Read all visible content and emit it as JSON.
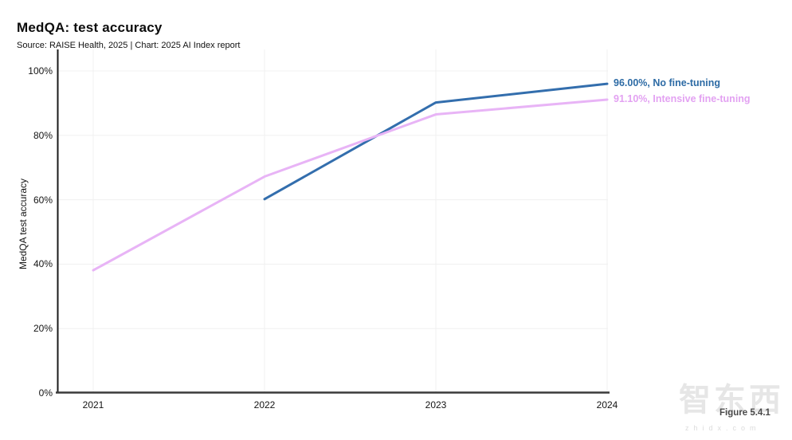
{
  "header": {
    "title": "MedQA: test accuracy",
    "source": "Source: RAISE Health, 2025 | Chart: 2025 AI Index report"
  },
  "chart_data": {
    "type": "line",
    "title": "MedQA: test accuracy",
    "xlabel": "",
    "ylabel": "MedQA test accuracy",
    "ylim": [
      0,
      100
    ],
    "grid": true,
    "xticks": [
      {
        "value": 2021,
        "label": "2021"
      },
      {
        "value": 2022,
        "label": "2022"
      },
      {
        "value": 2023,
        "label": "2023"
      },
      {
        "value": 2024,
        "label": "2024"
      }
    ],
    "yticks": [
      {
        "value": 0,
        "label": "0%"
      },
      {
        "value": 20,
        "label": "20%"
      },
      {
        "value": 40,
        "label": "40%"
      },
      {
        "value": 60,
        "label": "60%"
      },
      {
        "value": 80,
        "label": "80%"
      },
      {
        "value": 100,
        "label": "100%"
      }
    ],
    "series": [
      {
        "name": "No fine-tuning",
        "color": "#336ead",
        "label_color": "#2d6ba5",
        "x": [
          2022,
          2023,
          2024
        ],
        "values": [
          60.2,
          90.2,
          96.0
        ],
        "end_label": "96.00%, No fine-tuning"
      },
      {
        "name": "Intensive fine-tuning",
        "color": "#e8b4f6",
        "label_color": "#e3a2f2",
        "x": [
          2021,
          2022,
          2023,
          2024
        ],
        "values": [
          38.1,
          67.2,
          86.5,
          91.1
        ],
        "end_label": "91.10%, Intensive fine-tuning"
      }
    ],
    "legend_position": "right-of-line-ends"
  },
  "watermark": {
    "logo": "智东西",
    "domain": "zhidx.com"
  },
  "footer": {
    "figure_label": "Figure 5.4.1"
  }
}
